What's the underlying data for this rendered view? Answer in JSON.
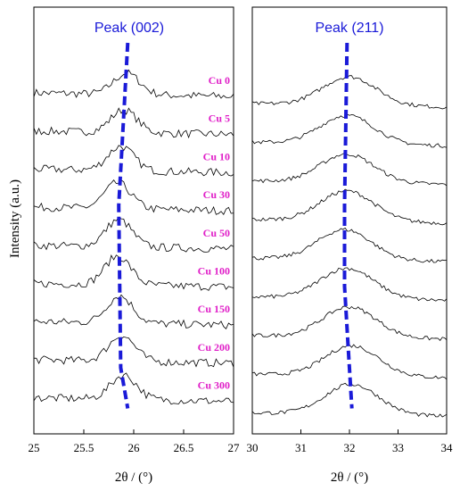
{
  "colors": {
    "trace": "#000000",
    "peak_line": "#1a1ad8",
    "labels": "#e020c8",
    "peak_title": "#1a1ad8"
  },
  "chart_data": [
    {
      "type": "line",
      "title": "Peak (002)",
      "xlabel": "2θ / (°)",
      "ylabel": "Intensity (a.u.)",
      "xlim": [
        25,
        27
      ],
      "xticks": [
        25,
        25.5,
        26,
        26.5,
        27
      ],
      "xtick_labels": [
        "25",
        "25.5",
        "26",
        "26.5",
        "27"
      ],
      "series": [
        {
          "name": "Cu 0",
          "peak_x": 25.93,
          "peak_height": 0.7
        },
        {
          "name": "Cu 5",
          "peak_x": 25.9,
          "peak_height": 0.75
        },
        {
          "name": "Cu 10",
          "peak_x": 25.87,
          "peak_height": 0.8
        },
        {
          "name": "Cu 30",
          "peak_x": 25.84,
          "peak_height": 0.85
        },
        {
          "name": "Cu 50",
          "peak_x": 25.85,
          "peak_height": 0.9
        },
        {
          "name": "Cu 100",
          "peak_x": 25.84,
          "peak_height": 0.95
        },
        {
          "name": "Cu 150",
          "peak_x": 25.86,
          "peak_height": 0.9
        },
        {
          "name": "Cu 200",
          "peak_x": 25.88,
          "peak_height": 0.85
        },
        {
          "name": "Cu 300",
          "peak_x": 25.9,
          "peak_height": 0.8
        }
      ],
      "peak_shift_line": [
        [
          25.94,
          0
        ],
        [
          25.85,
          4
        ],
        [
          25.87,
          8
        ],
        [
          25.94,
          9
        ]
      ]
    },
    {
      "type": "line",
      "title": "Peak (211)",
      "xlabel": "2θ / (°)",
      "xlim": [
        30,
        34
      ],
      "xticks": [
        30,
        31,
        32,
        33,
        34
      ],
      "xtick_labels": [
        "30",
        "31",
        "32",
        "33",
        "34"
      ],
      "series": [
        {
          "peak_x": 32.0,
          "peak_height": 0.8
        },
        {
          "peak_x": 31.95,
          "peak_height": 0.8
        },
        {
          "peak_x": 31.95,
          "peak_height": 0.8
        },
        {
          "peak_x": 31.95,
          "peak_height": 0.85
        },
        {
          "peak_x": 31.9,
          "peak_height": 0.85
        },
        {
          "peak_x": 31.95,
          "peak_height": 0.85
        },
        {
          "peak_x": 32.0,
          "peak_height": 0.85
        },
        {
          "peak_x": 32.05,
          "peak_height": 0.85
        },
        {
          "peak_x": 32.05,
          "peak_height": 0.85
        }
      ],
      "peak_shift_line": [
        [
          31.95,
          0
        ],
        [
          31.9,
          4
        ],
        [
          31.9,
          6
        ],
        [
          32.05,
          9
        ]
      ]
    }
  ]
}
